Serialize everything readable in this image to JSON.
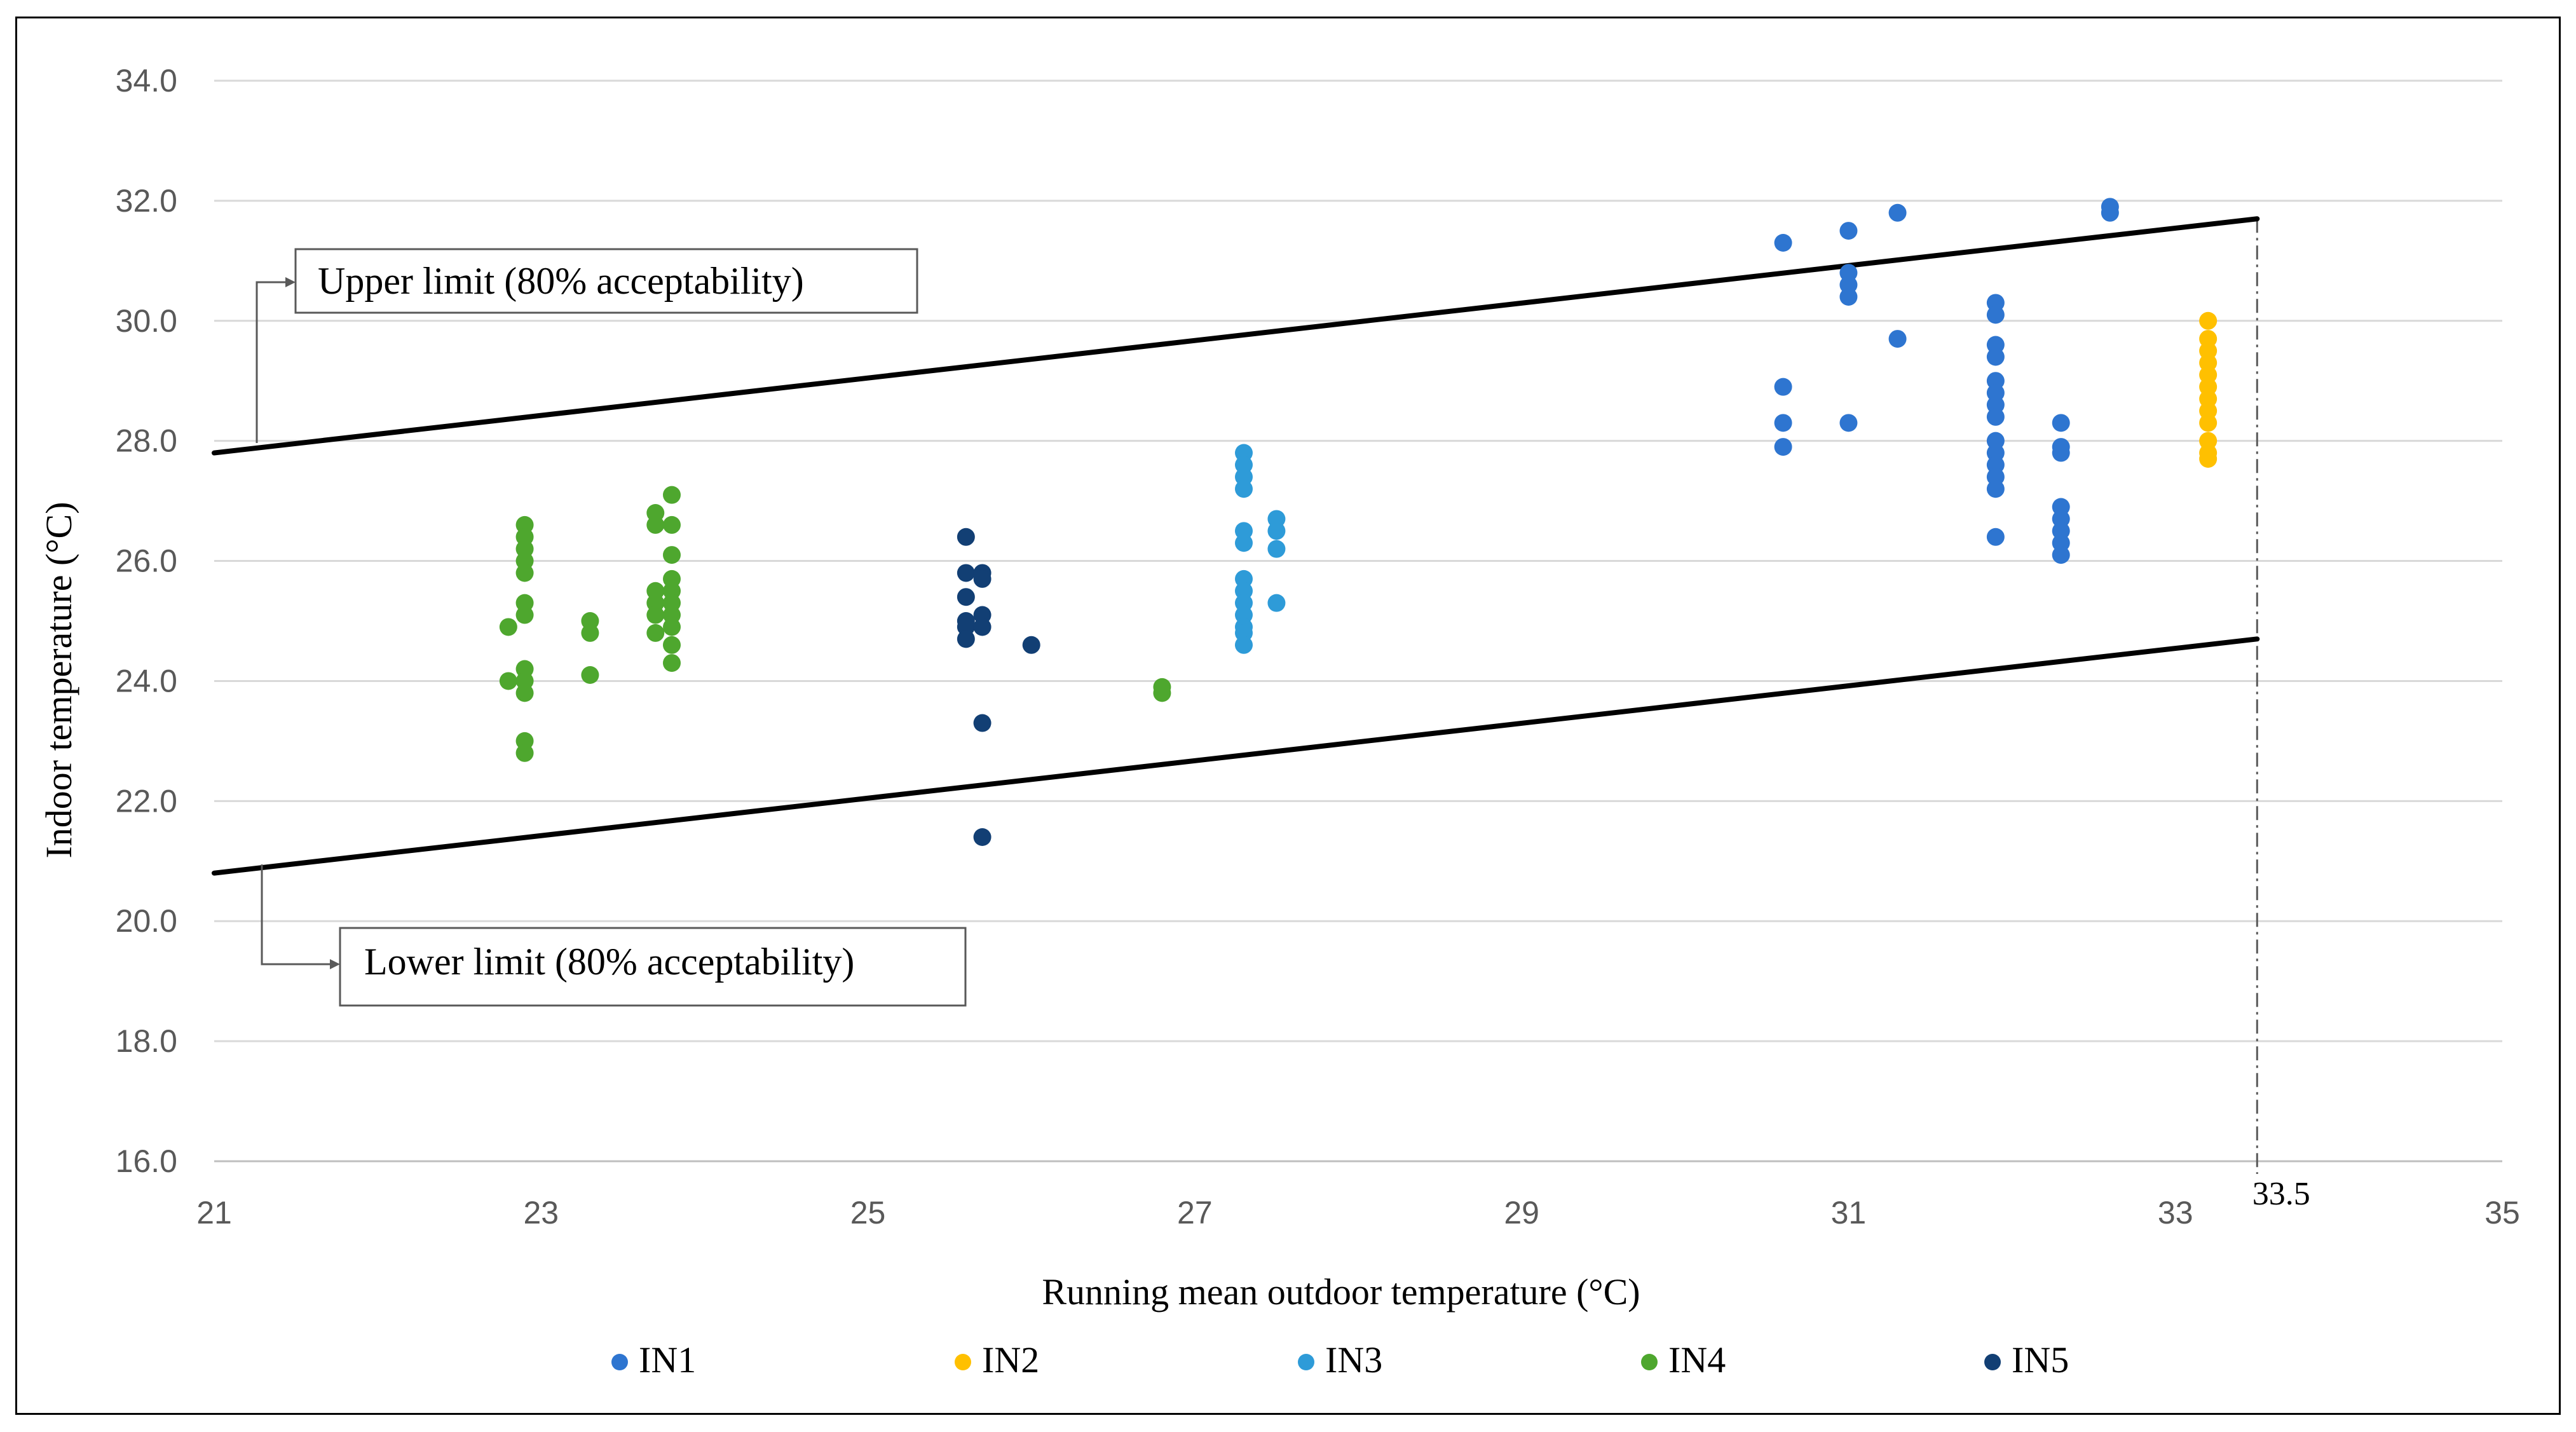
{
  "chart_data": {
    "type": "scatter",
    "xlabel": "Running mean outdoor temperature (°C)",
    "ylabel": "Indoor temperature (°C)",
    "xlim": [
      21,
      35
    ],
    "ylim": [
      16,
      34
    ],
    "xticks": [
      21,
      23,
      25,
      27,
      29,
      31,
      33,
      35
    ],
    "yticks": [
      16,
      18,
      20,
      22,
      24,
      26,
      28,
      30,
      32,
      34
    ],
    "ytick_labels": [
      "16.0",
      "18.0",
      "20.0",
      "22.0",
      "24.0",
      "26.0",
      "28.0",
      "30.0",
      "32.0",
      "34.0"
    ],
    "grid": "horizontal",
    "legend_position": "bottom",
    "limit_lines": [
      {
        "name": "Upper limit (80% acceptability)",
        "x": [
          21,
          33.5
        ],
        "y": [
          27.8,
          31.7
        ]
      },
      {
        "name": "Lower limit (80% acceptability)",
        "x": [
          21,
          33.5
        ],
        "y": [
          20.8,
          24.7
        ]
      }
    ],
    "reference_line": {
      "x": 33.5,
      "label": "33.5"
    },
    "series": [
      {
        "name": "IN1",
        "color": "#2E75D0",
        "points": [
          [
            30.6,
            31.3
          ],
          [
            30.6,
            28.9
          ],
          [
            30.6,
            28.3
          ],
          [
            30.6,
            27.9
          ],
          [
            31.0,
            31.5
          ],
          [
            31.0,
            30.8
          ],
          [
            31.0,
            30.6
          ],
          [
            31.0,
            30.4
          ],
          [
            31.0,
            28.3
          ],
          [
            31.3,
            31.8
          ],
          [
            31.3,
            29.7
          ],
          [
            31.9,
            30.3
          ],
          [
            31.9,
            30.1
          ],
          [
            31.9,
            29.6
          ],
          [
            31.9,
            29.4
          ],
          [
            31.9,
            29.0
          ],
          [
            31.9,
            28.8
          ],
          [
            31.9,
            28.6
          ],
          [
            31.9,
            28.4
          ],
          [
            31.9,
            28.0
          ],
          [
            31.9,
            27.8
          ],
          [
            31.9,
            27.6
          ],
          [
            31.9,
            27.4
          ],
          [
            31.9,
            27.2
          ],
          [
            31.9,
            26.4
          ],
          [
            32.3,
            28.3
          ],
          [
            32.3,
            27.9
          ],
          [
            32.3,
            27.8
          ],
          [
            32.3,
            26.9
          ],
          [
            32.3,
            26.7
          ],
          [
            32.3,
            26.5
          ],
          [
            32.3,
            26.3
          ],
          [
            32.3,
            26.1
          ],
          [
            32.6,
            31.9
          ],
          [
            32.6,
            31.8
          ]
        ]
      },
      {
        "name": "IN2",
        "color": "#FFC000",
        "points": [
          [
            33.2,
            30.0
          ],
          [
            33.2,
            29.7
          ],
          [
            33.2,
            29.5
          ],
          [
            33.2,
            29.3
          ],
          [
            33.2,
            29.1
          ],
          [
            33.2,
            28.9
          ],
          [
            33.2,
            28.7
          ],
          [
            33.2,
            28.5
          ],
          [
            33.2,
            28.3
          ],
          [
            33.2,
            28.0
          ],
          [
            33.2,
            27.8
          ],
          [
            33.2,
            27.7
          ]
        ]
      },
      {
        "name": "IN3",
        "color": "#2E9BD8",
        "points": [
          [
            27.3,
            27.8
          ],
          [
            27.3,
            27.6
          ],
          [
            27.3,
            27.4
          ],
          [
            27.3,
            27.2
          ],
          [
            27.3,
            26.5
          ],
          [
            27.3,
            26.3
          ],
          [
            27.3,
            25.7
          ],
          [
            27.3,
            25.5
          ],
          [
            27.3,
            25.3
          ],
          [
            27.3,
            25.1
          ],
          [
            27.3,
            24.9
          ],
          [
            27.3,
            24.8
          ],
          [
            27.3,
            24.6
          ],
          [
            27.5,
            26.7
          ],
          [
            27.5,
            26.5
          ],
          [
            27.5,
            26.2
          ],
          [
            27.5,
            25.3
          ]
        ]
      },
      {
        "name": "IN4",
        "color": "#4EA72E",
        "points": [
          [
            22.8,
            24.9
          ],
          [
            22.8,
            24.0
          ],
          [
            22.9,
            26.6
          ],
          [
            22.9,
            26.4
          ],
          [
            22.9,
            26.2
          ],
          [
            22.9,
            26.0
          ],
          [
            22.9,
            25.8
          ],
          [
            22.9,
            25.3
          ],
          [
            22.9,
            25.1
          ],
          [
            22.9,
            24.2
          ],
          [
            22.9,
            24.0
          ],
          [
            22.9,
            23.8
          ],
          [
            22.9,
            23.0
          ],
          [
            22.9,
            22.8
          ],
          [
            23.3,
            25.0
          ],
          [
            23.3,
            24.8
          ],
          [
            23.3,
            24.1
          ],
          [
            23.7,
            26.8
          ],
          [
            23.7,
            26.6
          ],
          [
            23.7,
            25.5
          ],
          [
            23.7,
            25.3
          ],
          [
            23.7,
            25.1
          ],
          [
            23.7,
            24.8
          ],
          [
            23.8,
            27.1
          ],
          [
            23.8,
            26.6
          ],
          [
            23.8,
            26.1
          ],
          [
            23.8,
            25.7
          ],
          [
            23.8,
            25.5
          ],
          [
            23.8,
            25.3
          ],
          [
            23.8,
            25.1
          ],
          [
            23.8,
            24.9
          ],
          [
            23.8,
            24.6
          ],
          [
            23.8,
            24.3
          ],
          [
            26.8,
            23.9
          ],
          [
            26.8,
            23.8
          ]
        ]
      },
      {
        "name": "IN5",
        "color": "#123F74",
        "points": [
          [
            25.6,
            26.4
          ],
          [
            25.6,
            25.8
          ],
          [
            25.6,
            25.4
          ],
          [
            25.6,
            25.0
          ],
          [
            25.6,
            24.9
          ],
          [
            25.6,
            24.7
          ],
          [
            25.7,
            25.8
          ],
          [
            25.7,
            25.7
          ],
          [
            25.7,
            25.1
          ],
          [
            25.7,
            24.9
          ],
          [
            25.7,
            23.3
          ],
          [
            25.7,
            21.4
          ],
          [
            26.0,
            24.6
          ]
        ]
      }
    ],
    "annotations": [
      {
        "text": "Upper limit (80% acceptability)",
        "target": "Upper limit (80% acceptability)"
      },
      {
        "text": "Lower limit (80% acceptability)",
        "target": "Lower limit (80% acceptability)"
      }
    ]
  }
}
